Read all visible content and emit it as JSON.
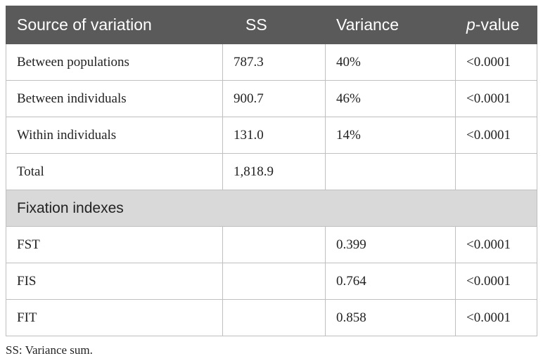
{
  "table": {
    "header": [
      "Source of variation",
      "SS",
      "Variance",
      [
        "p",
        "-value"
      ]
    ],
    "rows": [
      [
        "Between populations",
        "787.3",
        "40%",
        "<0.0001"
      ],
      [
        "Between individuals",
        "900.7",
        "46%",
        "<0.0001"
      ],
      [
        "Within individuals",
        "131.0",
        "14%",
        "<0.0001"
      ],
      [
        "Total",
        "1,818.9",
        null,
        null
      ]
    ],
    "section": "Fixation indexes",
    "section_rows": [
      [
        "FST",
        null,
        "0.399",
        "<0.0001"
      ],
      [
        "FIS",
        null,
        "0.764",
        "<0.0001"
      ],
      [
        "FIT",
        null,
        "0.858",
        "<0.0001"
      ]
    ]
  },
  "footnote": "SS: Variance sum."
}
